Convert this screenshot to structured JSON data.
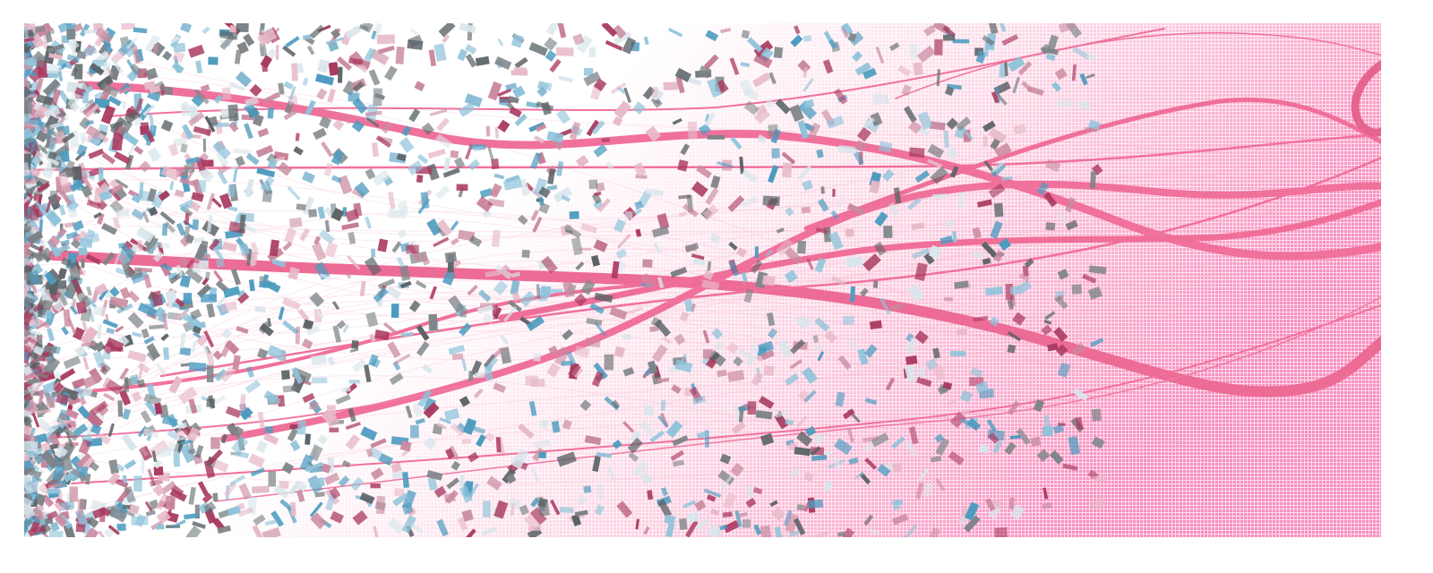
{
  "artwork": {
    "colors": {
      "background": "#ffffff",
      "pink_field": "#f98cbd",
      "ribbon": "#f0719c",
      "ribbon_dark": "#e5658f",
      "confetti_blue": "#4d9bbf",
      "confetti_maroon": "#a8385e",
      "confetti_gray": "#7d8488",
      "confetti_pale": "#d9e6ec"
    }
  }
}
